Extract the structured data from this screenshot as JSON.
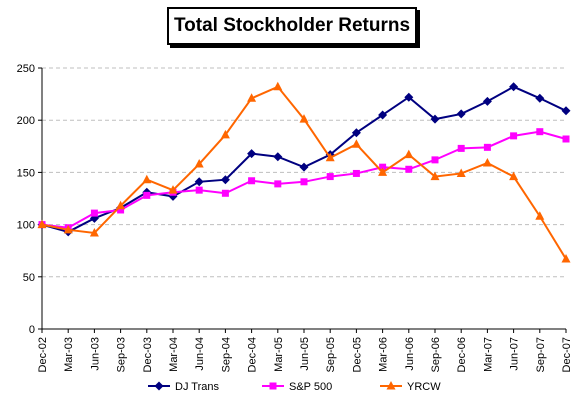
{
  "chart_data": {
    "type": "line",
    "title": "Total Stockholder Returns",
    "xlabel": "",
    "ylabel": "",
    "ylim": [
      0,
      250
    ],
    "yticks": [
      0,
      50,
      100,
      150,
      200,
      250
    ],
    "grid": true,
    "legend": "bottom",
    "categories": [
      "Dec-02",
      "Mar-03",
      "Jun-03",
      "Sep-03",
      "Dec-03",
      "Mar-04",
      "Jun-04",
      "Sep-04",
      "Dec-04",
      "Mar-05",
      "Jun-05",
      "Sep-05",
      "Dec-05",
      "Mar-06",
      "Jun-06",
      "Sep-06",
      "Dec-06",
      "Mar-07",
      "Jun-07",
      "Sep-07",
      "Dec-07"
    ],
    "series": [
      {
        "name": "DJ Trans",
        "color": "#000080",
        "marker": "diamond",
        "values": [
          100,
          93,
          106,
          116,
          131,
          127,
          141,
          143,
          168,
          165,
          155,
          167,
          188,
          205,
          222,
          201,
          206,
          218,
          232,
          221,
          209
        ]
      },
      {
        "name": "S&P 500",
        "color": "#ff00ff",
        "marker": "square",
        "values": [
          100,
          97,
          111,
          114,
          128,
          131,
          133,
          130,
          142,
          139,
          141,
          146,
          149,
          155,
          153,
          162,
          173,
          174,
          185,
          189,
          182
        ]
      },
      {
        "name": "YRCW",
        "color": "#ff6600",
        "marker": "triangle",
        "values": [
          100,
          95,
          92,
          118,
          143,
          133,
          158,
          186,
          221,
          232,
          201,
          164,
          177,
          150,
          167,
          146,
          149,
          159,
          146,
          108,
          67
        ]
      }
    ]
  }
}
